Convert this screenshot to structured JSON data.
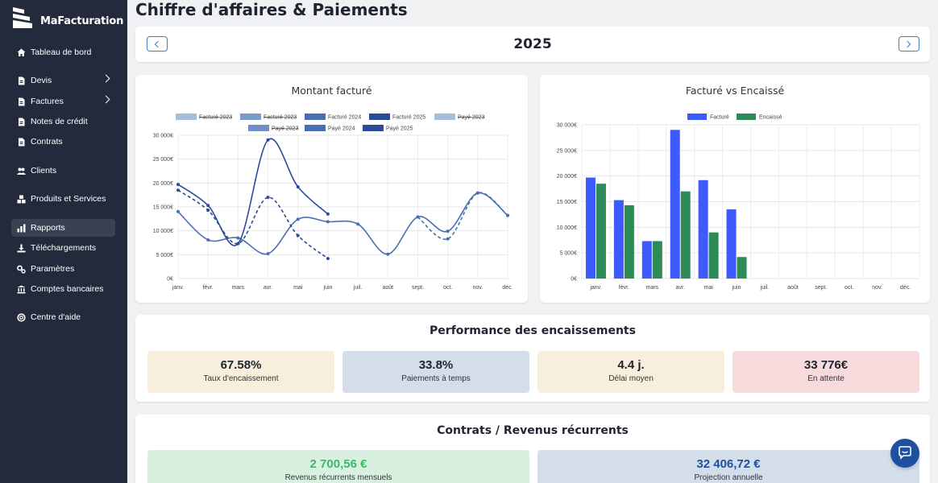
{
  "app": {
    "name": "MaFacturation"
  },
  "sidebar": {
    "items": [
      {
        "label": "Tableau de bord"
      },
      {
        "label": "Devis"
      },
      {
        "label": "Factures"
      },
      {
        "label": "Notes de crédit"
      },
      {
        "label": "Contrats"
      },
      {
        "label": "Clients"
      },
      {
        "label": "Produits et Services"
      },
      {
        "label": "Rapports"
      },
      {
        "label": "Téléchargements"
      },
      {
        "label": "Paramètres"
      },
      {
        "label": "Comptes bancaires"
      },
      {
        "label": "Centre d'aide"
      }
    ],
    "active": "Rapports"
  },
  "page": {
    "title": "Chiffre d'affaires & Paiements",
    "year": "2025"
  },
  "colors": {
    "sidebar_bg": "#232a3b",
    "accent": "#1e4fa1",
    "facture": "#3d5afe",
    "encaisse": "#2e8b57"
  },
  "chart_data": [
    {
      "type": "line",
      "title": "Montant facturé",
      "categories": [
        "janv.",
        "févr.",
        "mars",
        "avr.",
        "mai",
        "juin",
        "juil.",
        "août",
        "sept.",
        "oct.",
        "nov.",
        "déc."
      ],
      "y_ticks": [
        "0€",
        "5 000€",
        "10 000€",
        "15 000€",
        "20 000€",
        "25 000€",
        "30 000€"
      ],
      "ylim": [
        0,
        30000
      ],
      "legend": [
        "Facturé 2023",
        "Facturé 2023",
        "Facturé 2024",
        "Facturé 2025",
        "Payé 2023",
        "Payé 2023",
        "Payé 2024",
        "Payé 2025"
      ],
      "series": [
        {
          "name": "Facturé 2024",
          "values": [
            14000,
            8100,
            8500,
            5200,
            12400,
            11900,
            11400,
            5100,
            12900,
            9900,
            17900,
            13200
          ]
        },
        {
          "name": "Facturé 2025",
          "values": [
            19700,
            15300,
            7300,
            29000,
            19200,
            13500,
            null,
            null,
            null,
            null,
            null,
            null
          ]
        },
        {
          "name": "Payé 2024",
          "values": [
            null,
            null,
            null,
            null,
            null,
            null,
            null,
            null,
            12900,
            8300,
            17900,
            13200
          ]
        },
        {
          "name": "Payé 2025",
          "values": [
            18500,
            14300,
            7300,
            17000,
            9000,
            4200,
            null,
            null,
            null,
            null,
            null,
            null
          ]
        }
      ]
    },
    {
      "type": "bar",
      "title": "Facturé vs Encaissé",
      "categories": [
        "janv.",
        "févr.",
        "mars",
        "avr.",
        "mai",
        "juin",
        "juil.",
        "août",
        "sept.",
        "oct.",
        "nov.",
        "déc."
      ],
      "y_ticks": [
        "0€",
        "5 000€",
        "10 000€",
        "15 000€",
        "20 000€",
        "25 000€",
        "30 000€"
      ],
      "ylim": [
        0,
        30000
      ],
      "series": [
        {
          "name": "Facturé",
          "values": [
            19700,
            15300,
            7300,
            29000,
            19200,
            13500,
            0,
            0,
            0,
            0,
            0,
            0
          ]
        },
        {
          "name": "Encaissé",
          "values": [
            18500,
            14300,
            7300,
            17000,
            9000,
            4200,
            0,
            0,
            0,
            0,
            0,
            0
          ]
        }
      ]
    }
  ],
  "performance": {
    "title": "Performance des encaissements",
    "kpis": [
      {
        "value": "67.58%",
        "label": "Taux d'encaissement",
        "color": "#f7efdc"
      },
      {
        "value": "33.8%",
        "label": "Paiements à temps",
        "color": "#d3deea"
      },
      {
        "value": "4.4 j.",
        "label": "Délai moyen",
        "color": "#f7efdc"
      },
      {
        "value": "33 776€",
        "label": "En attente",
        "color": "#f7dadc"
      }
    ]
  },
  "contracts": {
    "title": "Contrats / Revenus récurrents",
    "monthly": {
      "value": "2 700,56 €",
      "label": "Revenus récurrents mensuels"
    },
    "annual": {
      "value": "32 406,72 €",
      "label": "Projection annuelle"
    }
  }
}
